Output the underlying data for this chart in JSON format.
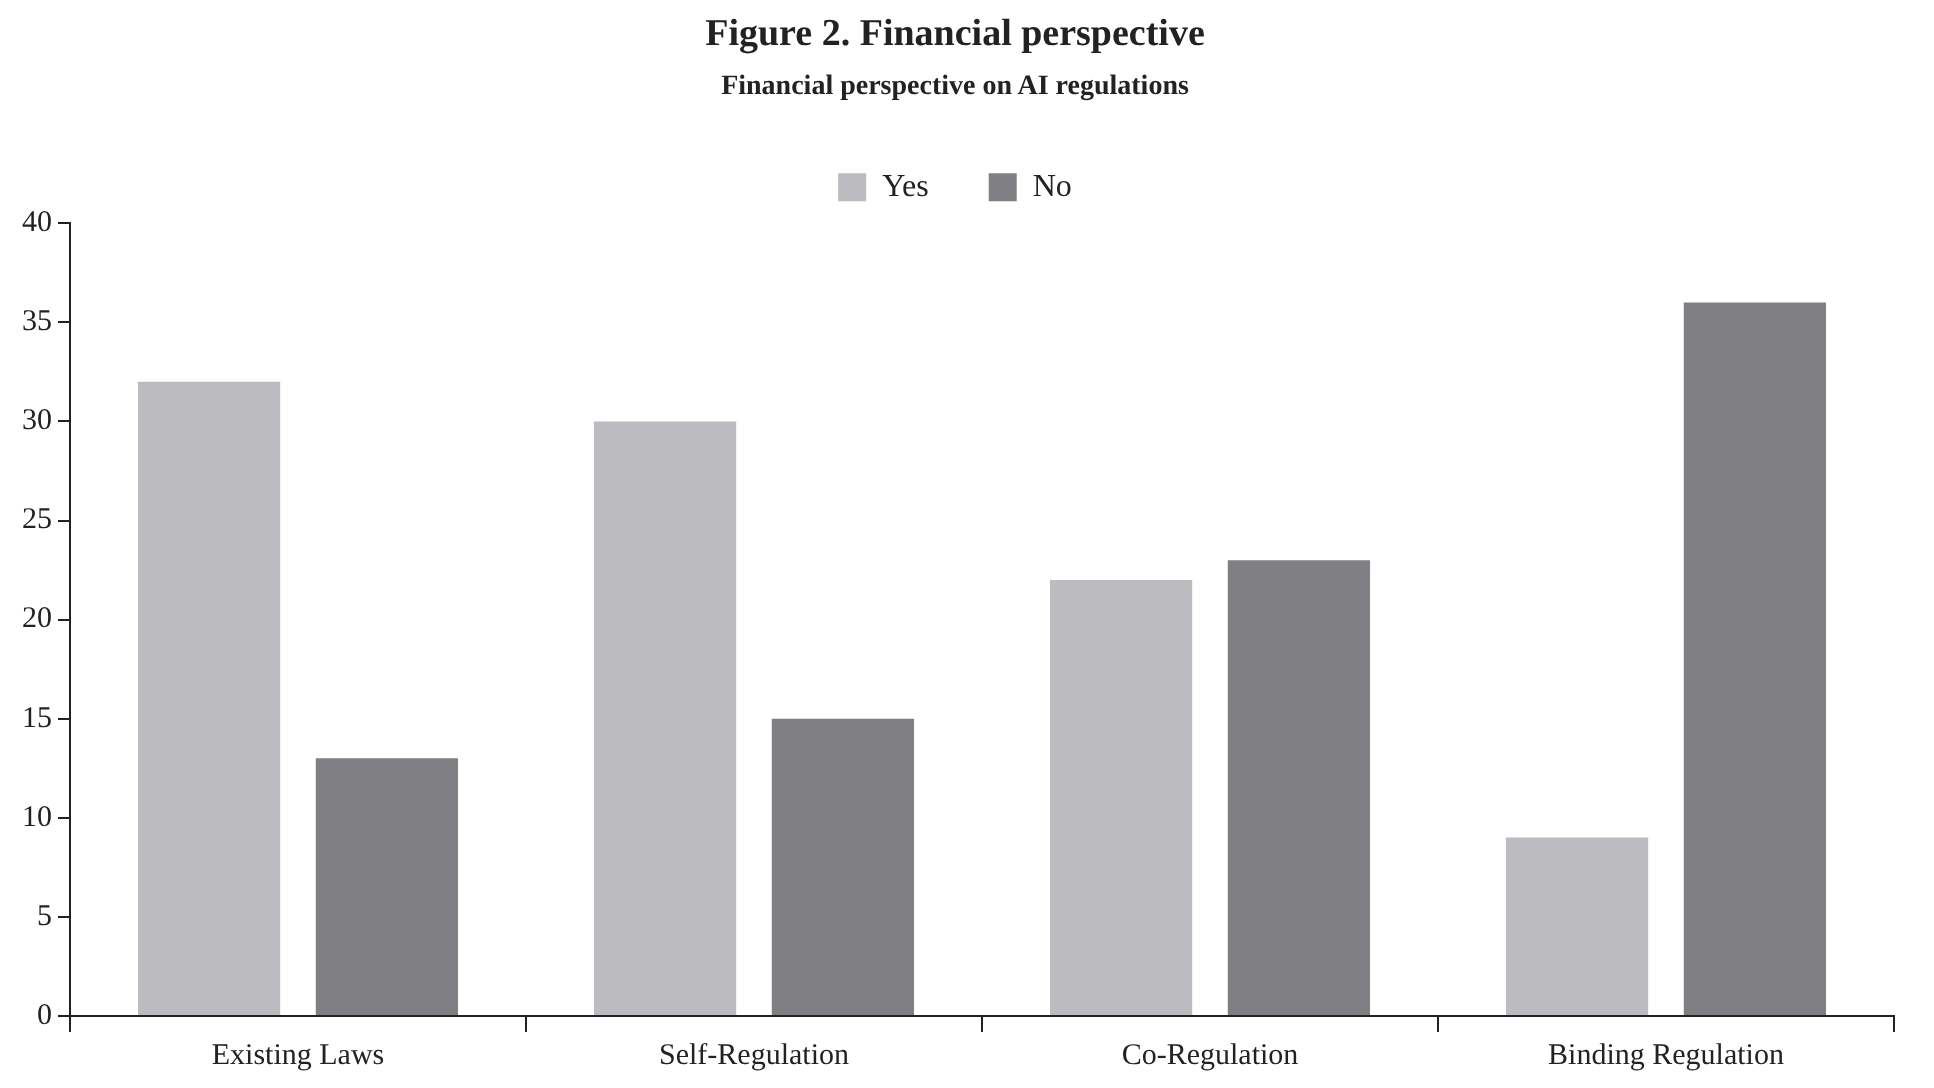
{
  "chart_data": {
    "type": "bar",
    "title": "Figure 2. Financial perspective",
    "subtitle": "Financial perspective on AI regulations",
    "categories": [
      "Existing Laws",
      "Self-Regulation",
      "Co-Regulation",
      "Binding Regulation"
    ],
    "series": [
      {
        "name": "Yes",
        "color": "#bcbcc0",
        "values": [
          32,
          30,
          22,
          9
        ]
      },
      {
        "name": "No",
        "color": "#808084",
        "values": [
          13,
          15,
          23,
          36
        ]
      }
    ],
    "ylim": [
      0,
      40
    ],
    "yticks": [
      0,
      5,
      10,
      15,
      20,
      25,
      30,
      35,
      40
    ],
    "grid": false,
    "legend": "top"
  }
}
